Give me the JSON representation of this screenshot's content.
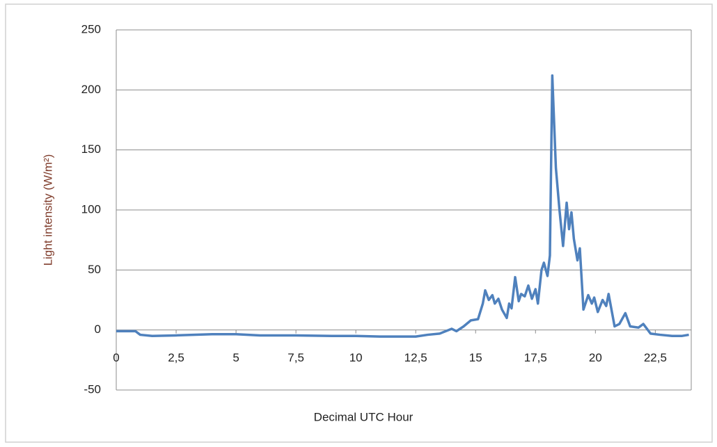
{
  "chart_data": {
    "type": "line",
    "x_label": "Decimal UTC Hour",
    "y_label": "Light intensity (W/m²)",
    "xlim": [
      0,
      24
    ],
    "xticks": [
      0,
      {
        "value": 2.5,
        "label": "2,5"
      },
      5,
      {
        "value": 7.5,
        "label": "7,5"
      },
      10,
      {
        "value": 12.5,
        "label": "12,5"
      },
      15,
      {
        "value": 17.5,
        "label": "17,5"
      },
      20,
      {
        "value": 22.5,
        "label": "22,5"
      }
    ],
    "ylim": [
      -50,
      250
    ],
    "yticks": [
      -50,
      0,
      50,
      100,
      150,
      200,
      250
    ],
    "grid": true,
    "series": [
      {
        "color": "#4f81bd",
        "x": [
          0,
          0.5,
          0.8,
          1.0,
          1.5,
          2.5,
          4,
          5,
          6,
          7.5,
          9,
          10,
          11,
          12.5,
          13,
          13.5,
          14,
          14.2,
          14.5,
          14.8,
          15.1,
          15.3,
          15.4,
          15.55,
          15.7,
          15.8,
          15.95,
          16.1,
          16.3,
          16.4,
          16.5,
          16.65,
          16.8,
          16.9,
          17.05,
          17.2,
          17.35,
          17.5,
          17.6,
          17.75,
          17.85,
          18.0,
          18.1,
          18.2,
          18.35,
          18.5,
          18.65,
          18.8,
          18.9,
          19.0,
          19.1,
          19.25,
          19.35,
          19.5,
          19.7,
          19.85,
          19.95,
          20.1,
          20.3,
          20.45,
          20.55,
          20.8,
          21.0,
          21.25,
          21.45,
          21.8,
          22.0,
          22.3,
          22.7,
          23.2,
          23.6,
          23.9
        ],
        "values": [
          -1,
          -1,
          -1,
          -4,
          -5,
          -4.5,
          -3.5,
          -3.5,
          -4.5,
          -4.5,
          -5,
          -5,
          -5.5,
          -5.5,
          -4,
          -3,
          1,
          -1,
          3,
          8,
          9,
          22,
          33,
          25,
          29,
          22,
          26,
          17,
          10,
          22,
          18,
          44,
          24,
          30,
          28,
          37,
          26,
          34,
          22,
          50,
          56,
          45,
          62,
          212,
          135,
          100,
          70,
          106,
          84,
          98,
          76,
          58,
          68,
          17,
          29,
          22,
          27,
          15,
          25,
          20,
          30,
          3,
          5,
          14,
          3,
          2,
          5,
          -3,
          -4,
          -5,
          -5,
          -4
        ]
      }
    ]
  }
}
